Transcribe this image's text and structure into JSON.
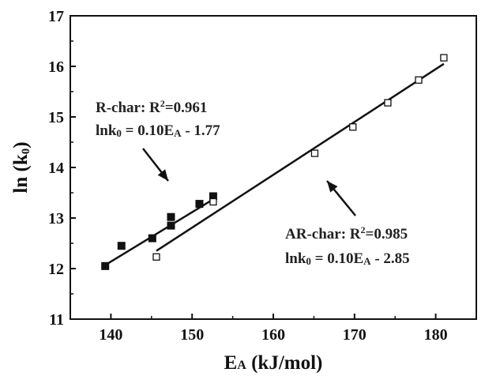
{
  "chart_data": {
    "type": "scatter",
    "xlim": [
      135,
      185
    ],
    "ylim": [
      11,
      17
    ],
    "x_ticks": [
      "140",
      "150",
      "160",
      "170",
      "180"
    ],
    "y_ticks": [
      "11",
      "12",
      "13",
      "14",
      "15",
      "16",
      "17"
    ],
    "xlabel": {
      "main": "E",
      "sub": "A",
      "rest": " (kJ/mol)"
    },
    "ylabel": {
      "main": "ln (k",
      "sub": "0",
      "rest": ")"
    },
    "series": [
      {
        "marker": "filled-square",
        "color": "#111111",
        "points": [
          [
            139.3,
            12.05
          ],
          [
            141.3,
            12.45
          ],
          [
            145.1,
            12.6
          ],
          [
            147.4,
            12.85
          ],
          [
            147.4,
            13.02
          ],
          [
            150.9,
            13.28
          ],
          [
            152.6,
            13.43
          ]
        ],
        "fit": {
          "x": [
            139.3,
            152.6
          ],
          "y": [
            12.07,
            13.37
          ]
        }
      },
      {
        "marker": "open-square",
        "color": "#111111",
        "points": [
          [
            145.6,
            12.23
          ],
          [
            152.6,
            13.32
          ],
          [
            165.1,
            14.28
          ],
          [
            169.8,
            14.8
          ],
          [
            174.1,
            15.28
          ],
          [
            177.9,
            15.73
          ],
          [
            181.0,
            16.17
          ]
        ],
        "fit": {
          "x": [
            145.6,
            181.0
          ],
          "y": [
            12.35,
            16.05
          ]
        }
      }
    ],
    "annotations": [
      {
        "lines": [
          {
            "parts": [
              [
                "R-char:  R",
                ""
              ],
              [
                "2",
                "sup"
              ],
              [
                "=0.961",
                ""
              ]
            ]
          },
          {
            "parts": [
              [
                "lnk",
                ""
              ],
              [
                "0",
                "sub"
              ],
              [
                " = 0.10E",
                ""
              ],
              [
                "A",
                "sub"
              ],
              [
                " - 1.77",
                ""
              ]
            ]
          }
        ]
      },
      {
        "lines": [
          {
            "parts": [
              [
                "AR-char: R",
                ""
              ],
              [
                "2",
                "sup"
              ],
              [
                "=0.985",
                ""
              ]
            ]
          },
          {
            "parts": [
              [
                "lnk",
                ""
              ],
              [
                "0",
                "sub"
              ],
              [
                " = 0.10E",
                ""
              ],
              [
                "A",
                "sub"
              ],
              [
                " - 2.85",
                ""
              ]
            ]
          }
        ]
      }
    ],
    "grid": false,
    "legend": "none"
  }
}
